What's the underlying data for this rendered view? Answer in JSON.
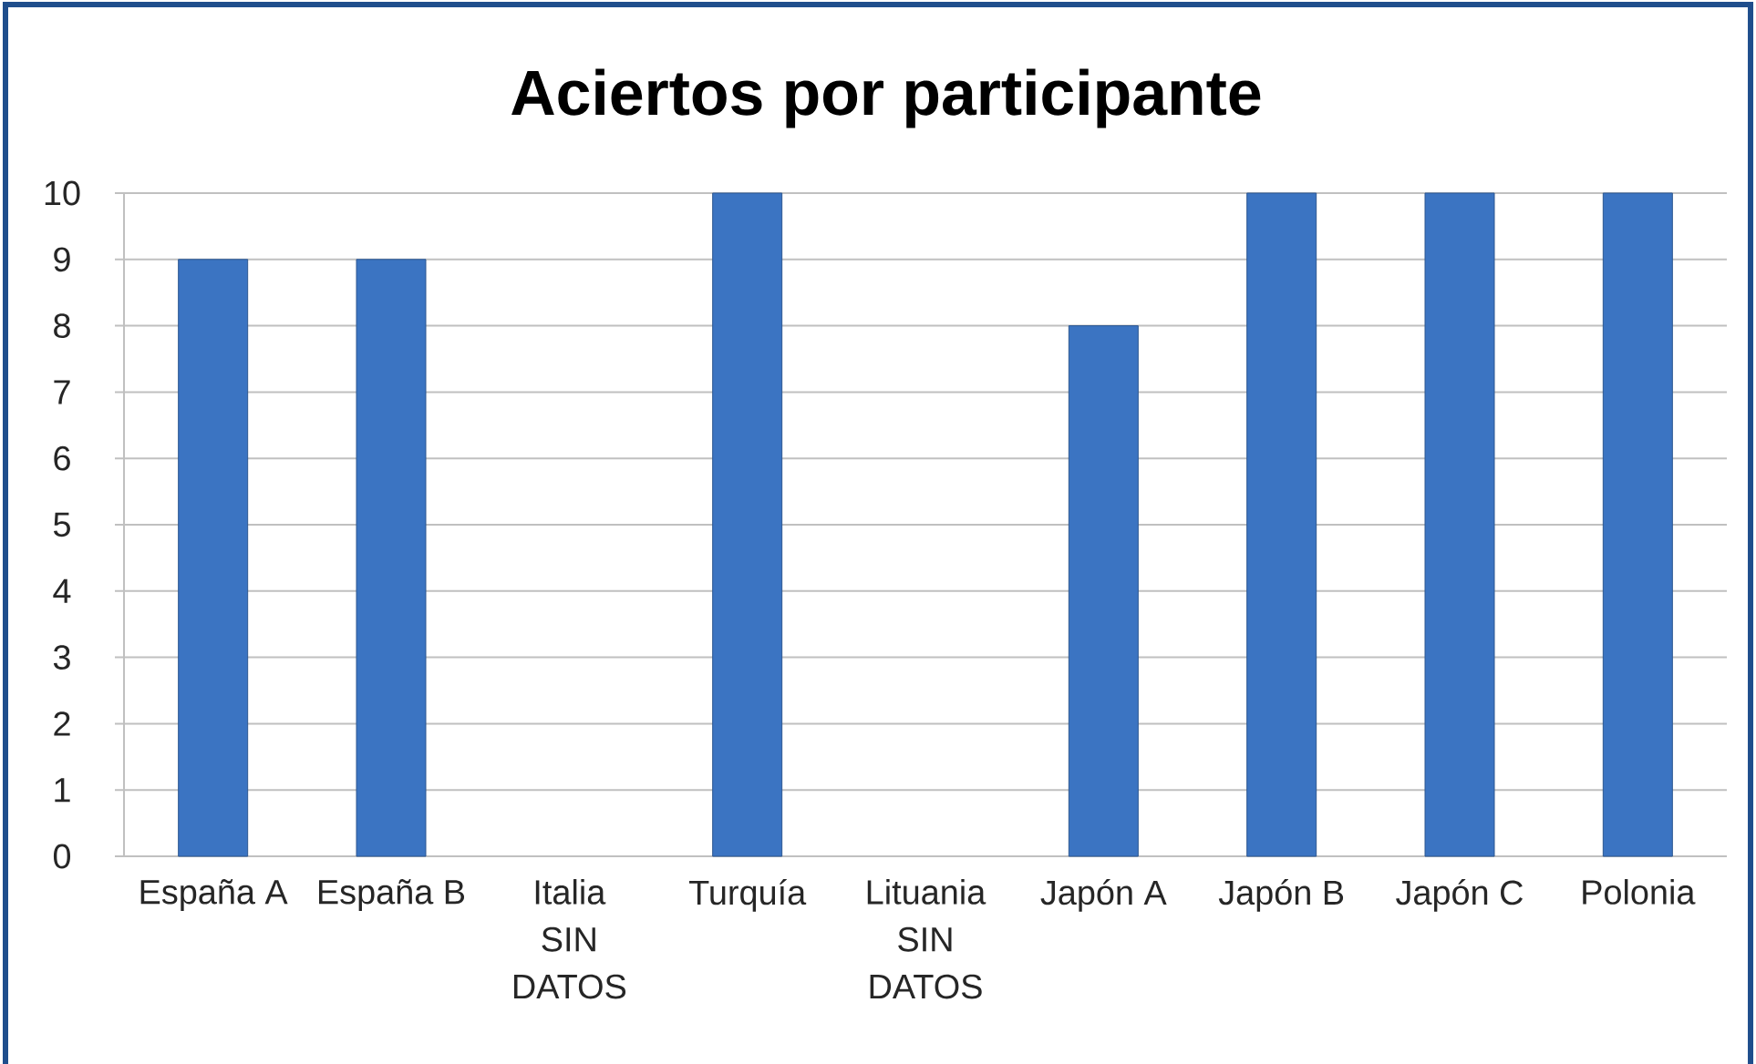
{
  "chart_data": {
    "type": "bar",
    "title": "Aciertos por participante",
    "categories": [
      "España A",
      "España B",
      "Italia\nSIN\nDATOS",
      "Turquía",
      "Lituania\nSIN\nDATOS",
      "Japón A",
      "Japón B",
      "Japón C",
      "Polonia"
    ],
    "values": [
      9,
      9,
      null,
      10,
      null,
      8,
      10,
      10,
      10
    ],
    "color": "#3b74c2",
    "ylim": [
      0,
      10
    ],
    "yticks": [
      0,
      1,
      2,
      3,
      4,
      5,
      6,
      7,
      8,
      9,
      10
    ],
    "grid": "y"
  }
}
